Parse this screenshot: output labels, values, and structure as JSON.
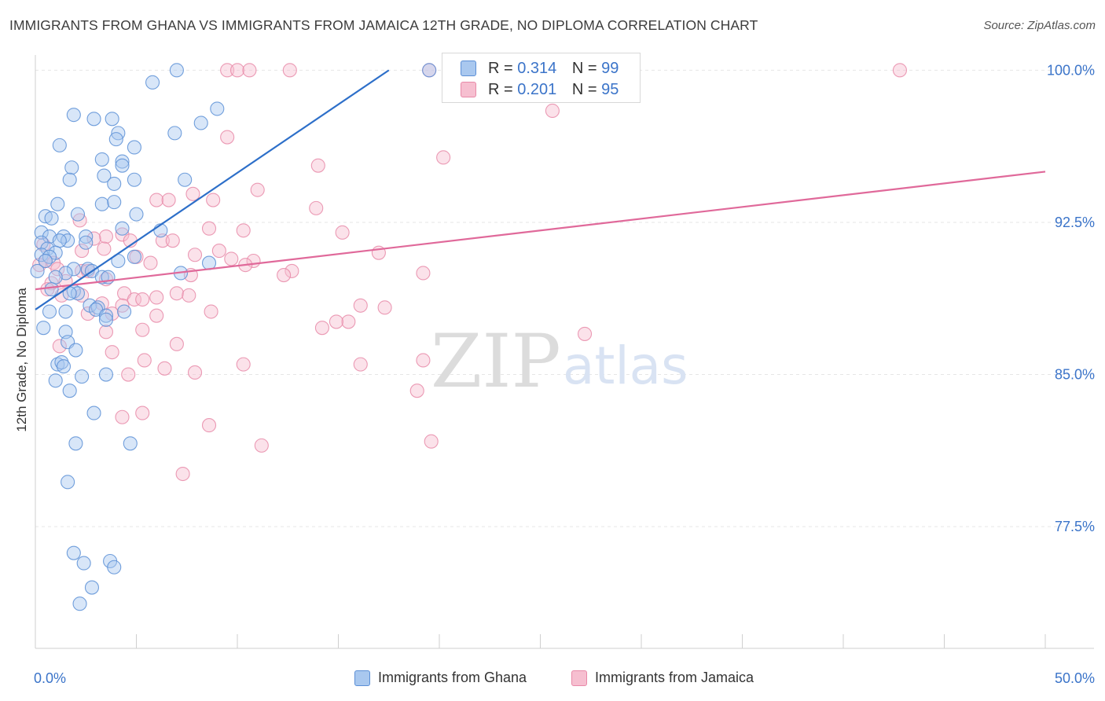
{
  "title": "IMMIGRANTS FROM GHANA VS IMMIGRANTS FROM JAMAICA 12TH GRADE, NO DIPLOMA CORRELATION CHART",
  "source": "Source: ZipAtlas.com",
  "watermark": {
    "zip": "ZIP",
    "atlas": "atlas"
  },
  "legend_top": [
    {
      "r_label": "R =",
      "r_value": "0.314",
      "n_label": "N =",
      "n_value": "99"
    },
    {
      "r_label": "R =",
      "r_value": "0.201",
      "n_label": "N =",
      "n_value": "95"
    }
  ],
  "legend_bottom": [
    {
      "label": "Immigrants from Ghana"
    },
    {
      "label": "Immigrants from Jamaica"
    }
  ],
  "colors": {
    "ghana_fill": "#a9c8ef",
    "ghana_stroke": "#5b8fd6",
    "ghana_line": "#2d6fc9",
    "jamaica_fill": "#f6bfd0",
    "jamaica_stroke": "#e889a8",
    "jamaica_line": "#e0699a",
    "axis_label": "#3b74c9",
    "grid": "#e6e6e6"
  },
  "chart_data": {
    "type": "scatter",
    "title": "IMMIGRANTS FROM GHANA VS IMMIGRANTS FROM JAMAICA 12TH GRADE, NO DIPLOMA CORRELATION CHART",
    "xlabel": "",
    "ylabel": "12th Grade, No Diploma",
    "xlim": [
      0,
      50
    ],
    "ylim": [
      71.5,
      100.75
    ],
    "x_tick_labels": [
      "0.0%",
      "50.0%"
    ],
    "y_ticks": [
      77.5,
      85.0,
      92.5,
      100.0
    ],
    "y_tick_labels": [
      "77.5%",
      "85.0%",
      "92.5%",
      "100.0%"
    ],
    "grid": "horizontal dashed",
    "legend_placement": "bottom",
    "series": [
      {
        "name": "Immigrants from Ghana",
        "R": 0.314,
        "N": 99,
        "trend": {
          "x": [
            0.0,
            17.5
          ],
          "y": [
            88.2,
            100.0
          ]
        },
        "points": [
          [
            7.0,
            100.0
          ],
          [
            19.5,
            100.0
          ],
          [
            5.8,
            99.4
          ],
          [
            9.0,
            98.1
          ],
          [
            1.9,
            97.8
          ],
          [
            2.9,
            97.6
          ],
          [
            3.8,
            97.6
          ],
          [
            8.2,
            97.4
          ],
          [
            6.9,
            96.9
          ],
          [
            4.1,
            96.9
          ],
          [
            4.0,
            96.6
          ],
          [
            1.2,
            96.3
          ],
          [
            4.9,
            96.2
          ],
          [
            3.3,
            95.6
          ],
          [
            4.3,
            95.5
          ],
          [
            4.3,
            95.3
          ],
          [
            1.8,
            95.2
          ],
          [
            3.4,
            94.8
          ],
          [
            1.7,
            94.6
          ],
          [
            4.9,
            94.6
          ],
          [
            7.4,
            94.6
          ],
          [
            3.9,
            94.4
          ],
          [
            1.1,
            93.4
          ],
          [
            3.3,
            93.4
          ],
          [
            3.9,
            93.5
          ],
          [
            2.1,
            92.9
          ],
          [
            0.5,
            92.8
          ],
          [
            0.8,
            92.7
          ],
          [
            5.0,
            92.9
          ],
          [
            4.3,
            92.2
          ],
          [
            0.3,
            92.0
          ],
          [
            6.2,
            92.1
          ],
          [
            0.7,
            91.8
          ],
          [
            1.4,
            91.8
          ],
          [
            2.5,
            91.8
          ],
          [
            1.6,
            91.6
          ],
          [
            0.3,
            91.5
          ],
          [
            1.2,
            91.6
          ],
          [
            2.5,
            91.5
          ],
          [
            0.6,
            91.2
          ],
          [
            1.0,
            91.0
          ],
          [
            0.3,
            90.9
          ],
          [
            0.7,
            90.8
          ],
          [
            4.9,
            90.8
          ],
          [
            4.1,
            90.6
          ],
          [
            8.6,
            90.5
          ],
          [
            2.6,
            90.2
          ],
          [
            2.8,
            90.1
          ],
          [
            1.9,
            90.2
          ],
          [
            0.5,
            90.6
          ],
          [
            0.1,
            90.1
          ],
          [
            7.2,
            90.0
          ],
          [
            1.5,
            90.0
          ],
          [
            1.0,
            89.8
          ],
          [
            3.3,
            89.8
          ],
          [
            3.6,
            89.8
          ],
          [
            0.8,
            89.2
          ],
          [
            1.9,
            89.1
          ],
          [
            2.1,
            89.0
          ],
          [
            1.7,
            89.0
          ],
          [
            2.7,
            88.4
          ],
          [
            3.1,
            88.3
          ],
          [
            4.4,
            88.1
          ],
          [
            0.7,
            88.1
          ],
          [
            1.5,
            88.1
          ],
          [
            3.0,
            88.2
          ],
          [
            3.5,
            87.9
          ],
          [
            3.5,
            87.7
          ],
          [
            0.4,
            87.3
          ],
          [
            1.5,
            87.1
          ],
          [
            1.6,
            86.6
          ],
          [
            2.0,
            86.2
          ],
          [
            1.1,
            85.5
          ],
          [
            1.3,
            85.6
          ],
          [
            1.4,
            85.4
          ],
          [
            3.5,
            85.0
          ],
          [
            2.3,
            84.9
          ],
          [
            1.0,
            84.7
          ],
          [
            1.7,
            84.2
          ],
          [
            2.9,
            83.1
          ],
          [
            2.0,
            81.6
          ],
          [
            4.7,
            81.6
          ],
          [
            1.6,
            79.7
          ],
          [
            1.9,
            76.2
          ],
          [
            3.7,
            75.8
          ],
          [
            2.4,
            75.7
          ],
          [
            3.9,
            75.5
          ],
          [
            2.8,
            74.5
          ],
          [
            2.2,
            73.7
          ]
        ]
      },
      {
        "name": "Immigrants from Jamaica",
        "R": 0.201,
        "N": 95,
        "trend": {
          "x": [
            0.0,
            50.0
          ],
          "y": [
            89.2,
            95.0
          ]
        },
        "points": [
          [
            9.5,
            100.0
          ],
          [
            10.0,
            100.0
          ],
          [
            10.6,
            100.0
          ],
          [
            12.6,
            100.0
          ],
          [
            19.5,
            100.0
          ],
          [
            42.8,
            100.0
          ],
          [
            25.6,
            98.0
          ],
          [
            9.5,
            96.7
          ],
          [
            20.2,
            95.7
          ],
          [
            14.0,
            95.3
          ],
          [
            11.0,
            94.1
          ],
          [
            7.8,
            93.9
          ],
          [
            8.8,
            93.6
          ],
          [
            6.0,
            93.6
          ],
          [
            6.6,
            93.6
          ],
          [
            13.9,
            93.2
          ],
          [
            2.2,
            92.6
          ],
          [
            8.6,
            92.2
          ],
          [
            15.2,
            92.0
          ],
          [
            10.3,
            92.1
          ],
          [
            3.5,
            91.8
          ],
          [
            6.3,
            91.6
          ],
          [
            2.9,
            91.7
          ],
          [
            4.3,
            91.9
          ],
          [
            6.8,
            91.6
          ],
          [
            4.7,
            91.6
          ],
          [
            0.4,
            91.4
          ],
          [
            3.4,
            91.2
          ],
          [
            9.1,
            91.1
          ],
          [
            17.0,
            91.0
          ],
          [
            2.3,
            91.1
          ],
          [
            7.9,
            90.9
          ],
          [
            5.0,
            90.8
          ],
          [
            9.7,
            90.7
          ],
          [
            10.8,
            90.6
          ],
          [
            0.5,
            90.6
          ],
          [
            0.2,
            90.4
          ],
          [
            0.9,
            90.5
          ],
          [
            5.7,
            90.5
          ],
          [
            10.4,
            90.4
          ],
          [
            1.1,
            90.2
          ],
          [
            2.3,
            90.1
          ],
          [
            2.6,
            90.1
          ],
          [
            12.7,
            90.1
          ],
          [
            19.2,
            90.0
          ],
          [
            7.7,
            89.9
          ],
          [
            12.3,
            89.9
          ],
          [
            3.5,
            89.7
          ],
          [
            1.5,
            89.6
          ],
          [
            0.8,
            89.5
          ],
          [
            0.6,
            89.2
          ],
          [
            4.4,
            89.0
          ],
          [
            7.0,
            89.0
          ],
          [
            7.6,
            88.9
          ],
          [
            2.3,
            88.9
          ],
          [
            1.3,
            88.9
          ],
          [
            4.9,
            88.7
          ],
          [
            5.3,
            88.7
          ],
          [
            6.0,
            88.8
          ],
          [
            3.3,
            88.5
          ],
          [
            4.3,
            88.4
          ],
          [
            16.1,
            88.4
          ],
          [
            17.3,
            88.3
          ],
          [
            8.7,
            88.1
          ],
          [
            3.8,
            88.0
          ],
          [
            2.6,
            88.0
          ],
          [
            6.0,
            87.9
          ],
          [
            15.5,
            87.6
          ],
          [
            14.9,
            87.6
          ],
          [
            5.3,
            87.2
          ],
          [
            14.2,
            87.3
          ],
          [
            27.2,
            87.0
          ],
          [
            3.5,
            87.1
          ],
          [
            7.0,
            86.5
          ],
          [
            1.2,
            86.4
          ],
          [
            3.8,
            86.1
          ],
          [
            5.4,
            85.7
          ],
          [
            10.3,
            85.5
          ],
          [
            16.1,
            85.5
          ],
          [
            19.2,
            85.7
          ],
          [
            6.4,
            85.3
          ],
          [
            7.9,
            85.1
          ],
          [
            4.6,
            85.0
          ],
          [
            18.9,
            84.2
          ],
          [
            5.3,
            83.1
          ],
          [
            4.3,
            82.9
          ],
          [
            8.6,
            82.5
          ],
          [
            11.2,
            81.5
          ],
          [
            19.6,
            81.7
          ],
          [
            7.3,
            80.1
          ]
        ]
      }
    ]
  }
}
